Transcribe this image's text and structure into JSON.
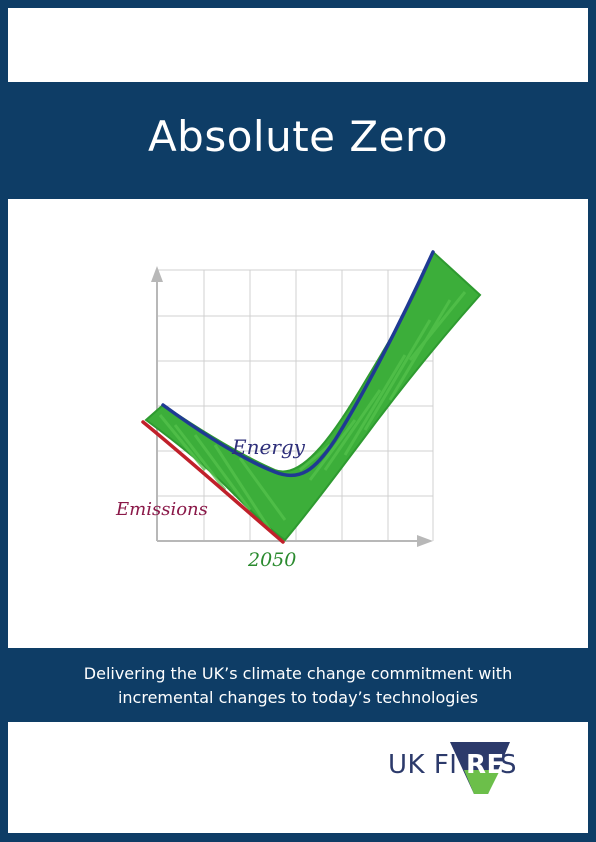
{
  "cover": {
    "title": "Absolute Zero",
    "subtitle_line1": "Delivering the UK’s climate change commitment with",
    "subtitle_line2": "incremental changes to today’s technologies"
  },
  "illustration": {
    "energy_label": "Energy",
    "emissions_label": "Emissions",
    "year_label": "2050",
    "colors": {
      "energy": "#1f3a93",
      "emissions": "#c0202a",
      "fill": "#3cae3a",
      "grid": "#d0d0d0",
      "axis": "#b8b8b8",
      "energy_text": "#2e2f7a",
      "emissions_text": "#8a1848",
      "year_text": "#2a8a2e"
    }
  },
  "logo": {
    "part1": "UK FI",
    "part2": "RE",
    "part3": "S",
    "colors": {
      "text": "#2c3a6b",
      "badge_top": "#2c3a6b",
      "badge_bottom": "#6cbf4a"
    }
  }
}
